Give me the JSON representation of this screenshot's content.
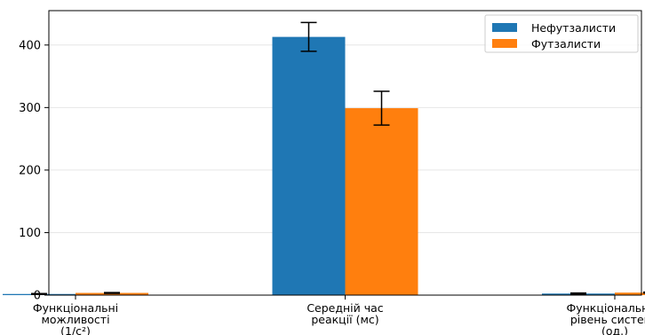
{
  "chart_data": {
    "type": "bar",
    "title": "",
    "xlabel": "",
    "ylabel": "",
    "ylim": [
      0,
      455
    ],
    "yticks": [
      0,
      100,
      200,
      300,
      400
    ],
    "grid": "horizontal",
    "legend_position": "top-right",
    "categories": [
      [
        "Функціональні",
        "можливості",
        "(1/с²)"
      ],
      [
        "Середній час",
        "реакції (мс)"
      ],
      [
        "Функціональний",
        "рівень системи",
        "(од.)"
      ]
    ],
    "series": [
      {
        "name": "Нефутзалисти",
        "color": "#1f77b4",
        "values": [
          1.8,
          413,
          2.5
        ],
        "errors": [
          0.6,
          23,
          0.8
        ]
      },
      {
        "name": "Футзалисти",
        "color": "#ff7f0e",
        "values": [
          3.5,
          299,
          4.0
        ],
        "errors": [
          0.6,
          27,
          0.8
        ]
      }
    ]
  }
}
